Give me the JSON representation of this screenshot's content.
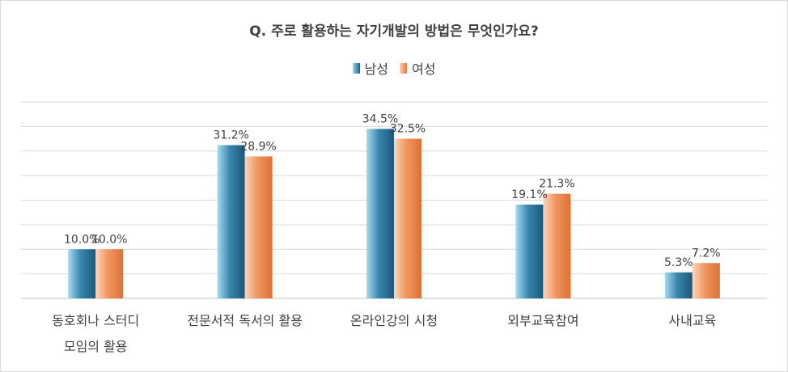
{
  "chart_data": {
    "type": "bar",
    "title": "Q. 주로 활용하는 자기개발의 방법은 무엇인가요?",
    "categories": [
      [
        "동호회나 스터디",
        "모임의 활용"
      ],
      [
        "전문서적 독서의 활용"
      ],
      [
        "온라인강의 시청"
      ],
      [
        "외부교육참여"
      ],
      [
        "사내교육"
      ]
    ],
    "series": [
      {
        "name": "남성",
        "values": [
          10.0,
          31.2,
          34.5,
          19.1,
          5.3
        ],
        "labels": [
          "10.0%",
          "31.2%",
          "34.5%",
          "19.1%",
          "5.3%"
        ],
        "color": "#1f5f84"
      },
      {
        "name": "여성",
        "values": [
          10.0,
          28.9,
          32.5,
          21.3,
          7.2
        ],
        "labels": [
          "10.0%",
          "28.9%",
          "32.5%",
          "21.3%",
          "7.2%"
        ],
        "color": "#e2783f"
      }
    ],
    "ylim": [
      0,
      40
    ],
    "grid": true,
    "legend_position": "top-center"
  }
}
